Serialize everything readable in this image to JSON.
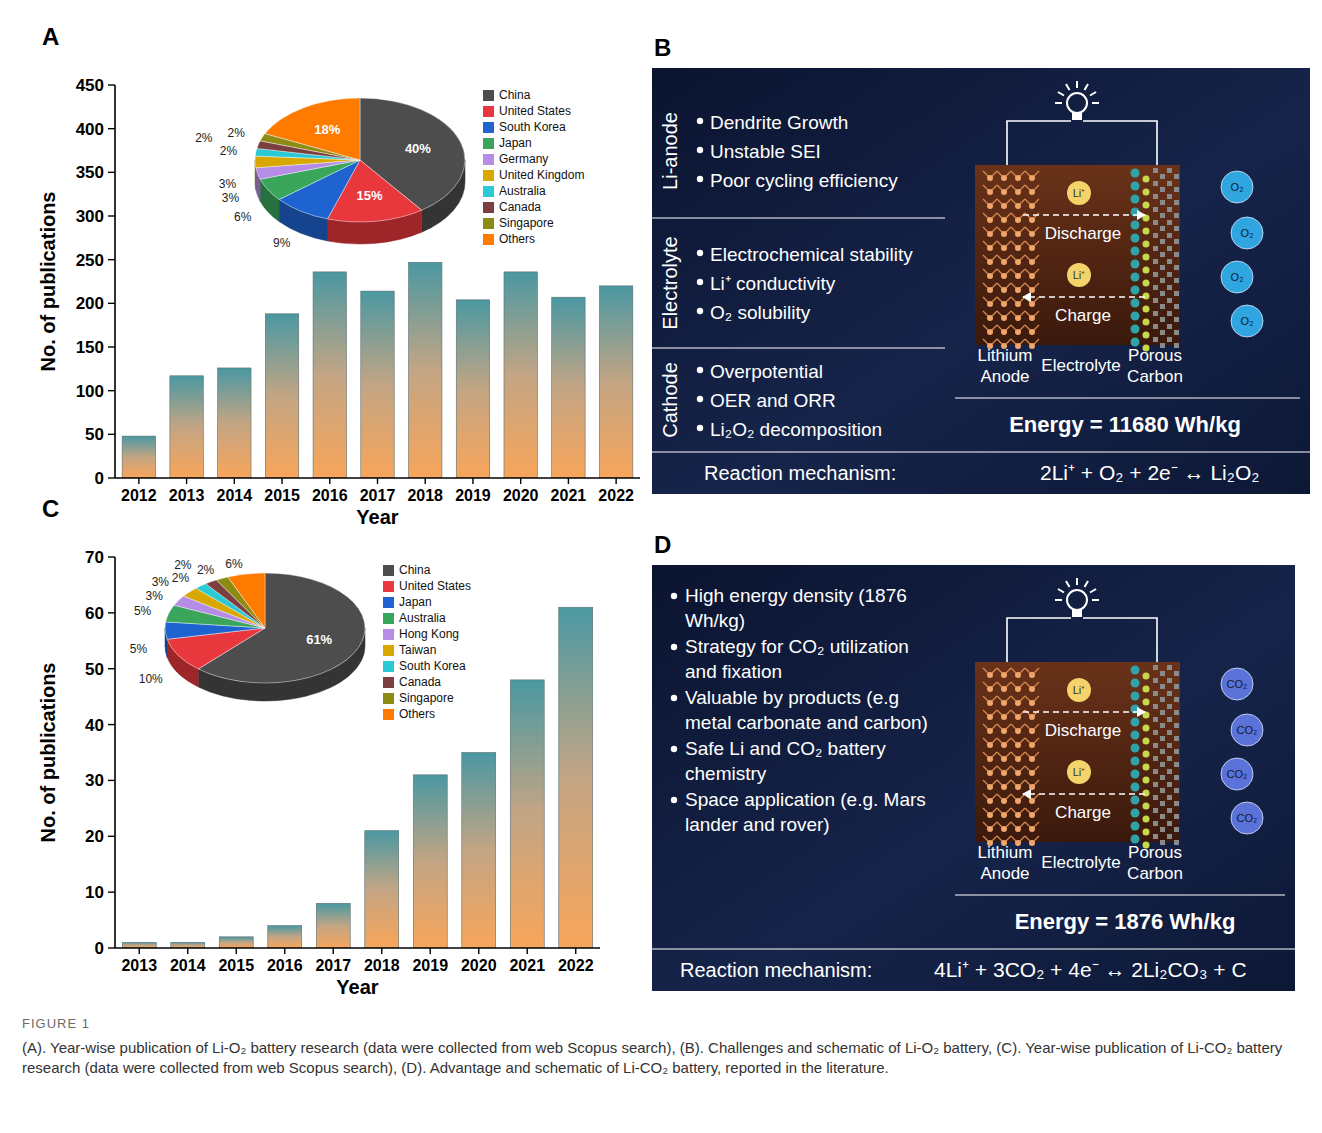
{
  "chart_data": [
    {
      "panel": "A",
      "type": "bar",
      "categories": [
        "2012",
        "2013",
        "2014",
        "2015",
        "2016",
        "2017",
        "2018",
        "2019",
        "2020",
        "2021",
        "2022"
      ],
      "values": [
        48,
        117,
        126,
        188,
        236,
        214,
        247,
        204,
        236,
        207,
        220
      ],
      "color": "#4a98a2",
      "x_label": "Year",
      "y_label": "No. of publications",
      "ylim": [
        0,
        450
      ],
      "yticks": [
        0,
        50,
        100,
        150,
        200,
        250,
        300,
        350,
        400,
        450
      ],
      "inset": {
        "type": "pie",
        "categories": [
          "China",
          "United States",
          "South Korea",
          "Japan",
          "Germany",
          "United Kingdom",
          "Australia",
          "Canada",
          "Singapore",
          "Others"
        ],
        "values": [
          40,
          15,
          9,
          6,
          3,
          3,
          2,
          2,
          2,
          18
        ],
        "value_labels": [
          "40%",
          "15%",
          "9%",
          "6%",
          "3%",
          "3%",
          "2%",
          "2%",
          "2%",
          "18%"
        ],
        "colors": [
          "#4d4d4d",
          "#e8383d",
          "#1f63d1",
          "#3aa65c",
          "#b58ce6",
          "#d9a800",
          "#29c9d6",
          "#7b3f3f",
          "#8c8c14",
          "#ff7b00"
        ],
        "data_labels": true,
        "legend": "right"
      }
    },
    {
      "panel": "C",
      "type": "bar",
      "categories": [
        "2013",
        "2014",
        "2015",
        "2016",
        "2017",
        "2018",
        "2019",
        "2020",
        "2021",
        "2022"
      ],
      "values": [
        1,
        1,
        2,
        4,
        8,
        21,
        31,
        35,
        48,
        61
      ],
      "color": "#4a98a2",
      "x_label": "Year",
      "y_label": "No. of publications",
      "ylim": [
        0,
        70
      ],
      "yticks": [
        0,
        10,
        20,
        30,
        40,
        50,
        60,
        70
      ],
      "inset": {
        "type": "pie",
        "categories": [
          "China",
          "United States",
          "Japan",
          "Australia",
          "Hong Kong",
          "Taiwan",
          "South Korea",
          "Canada",
          "Singapore",
          "Others"
        ],
        "values": [
          61,
          10,
          5,
          5,
          3,
          3,
          2,
          2,
          2,
          6
        ],
        "value_labels": [
          "61%",
          "10%",
          "5%",
          "5%",
          "3%",
          "3%",
          "2%",
          "2%",
          "2%",
          "6%"
        ],
        "colors": [
          "#4d4d4d",
          "#e8383d",
          "#1f63d1",
          "#3aa65c",
          "#b58ce6",
          "#d9a800",
          "#29c9d6",
          "#7b3f3f",
          "#8c8c14",
          "#ff7b00"
        ],
        "data_labels": true,
        "legend": "right"
      }
    }
  ],
  "diagrams": [
    {
      "panel": "B",
      "sections": [
        {
          "label": "Li-anode",
          "items": [
            "Dendrite Growth",
            "Unstable SEI",
            "Poor cycling efficiency"
          ]
        },
        {
          "label": "Electrolyte",
          "items": [
            "Electrochemical stability",
            "Li⁺ conductivity",
            "O₂ solubility"
          ]
        },
        {
          "label": "Cathode",
          "items": [
            "Overpotential",
            "OER and ORR",
            "Li₂O₂ decomposition"
          ]
        }
      ],
      "schematic": {
        "ion": "Li⁺",
        "discharge": "Discharge",
        "charge": "Charge",
        "anode": "Lithium Anode",
        "electrolyte": "Electrolyte",
        "cathode": "Porous Carbon",
        "gas": "O₂"
      },
      "energy": "Energy = 11680 Wh/kg",
      "reaction_label": "Reaction mechanism:",
      "reaction": "2Li⁺ + O₂ + 2e⁻ ↔ Li₂O₂"
    },
    {
      "panel": "D",
      "items": [
        "High energy density (1876 Wh/kg)",
        "Strategy for CO₂ utilization and fixation",
        "Valuable by products (e.g metal carbonate and carbon)",
        "Safe Li and CO₂ battery chemistry",
        "Space application (e.g. Mars lander and rover)"
      ],
      "schematic": {
        "ion": "Li⁺",
        "discharge": "Discharge",
        "charge": "Charge",
        "anode": "Lithium Anode",
        "electrolyte": "Electrolyte",
        "cathode": "Porous Carbon",
        "gas": "CO₂"
      },
      "energy": "Energy = 1876 Wh/kg",
      "reaction_label": "Reaction mechanism:",
      "reaction": "4Li⁺ + 3CO₂ + 4e⁻ ↔ 2Li₂CO₃ + C"
    }
  ],
  "caption": {
    "label": "FIGURE 1",
    "text": "(A). Year-wise publication of Li-O₂ battery research (data were collected from web Scopus search), (B). Challenges and schematic of Li-O₂ battery, (C). Year-wise publication of Li-CO₂ battery research (data were collected from web Scopus search), (D). Advantage and schematic of Li-CO₂ battery, reported in the literature."
  }
}
